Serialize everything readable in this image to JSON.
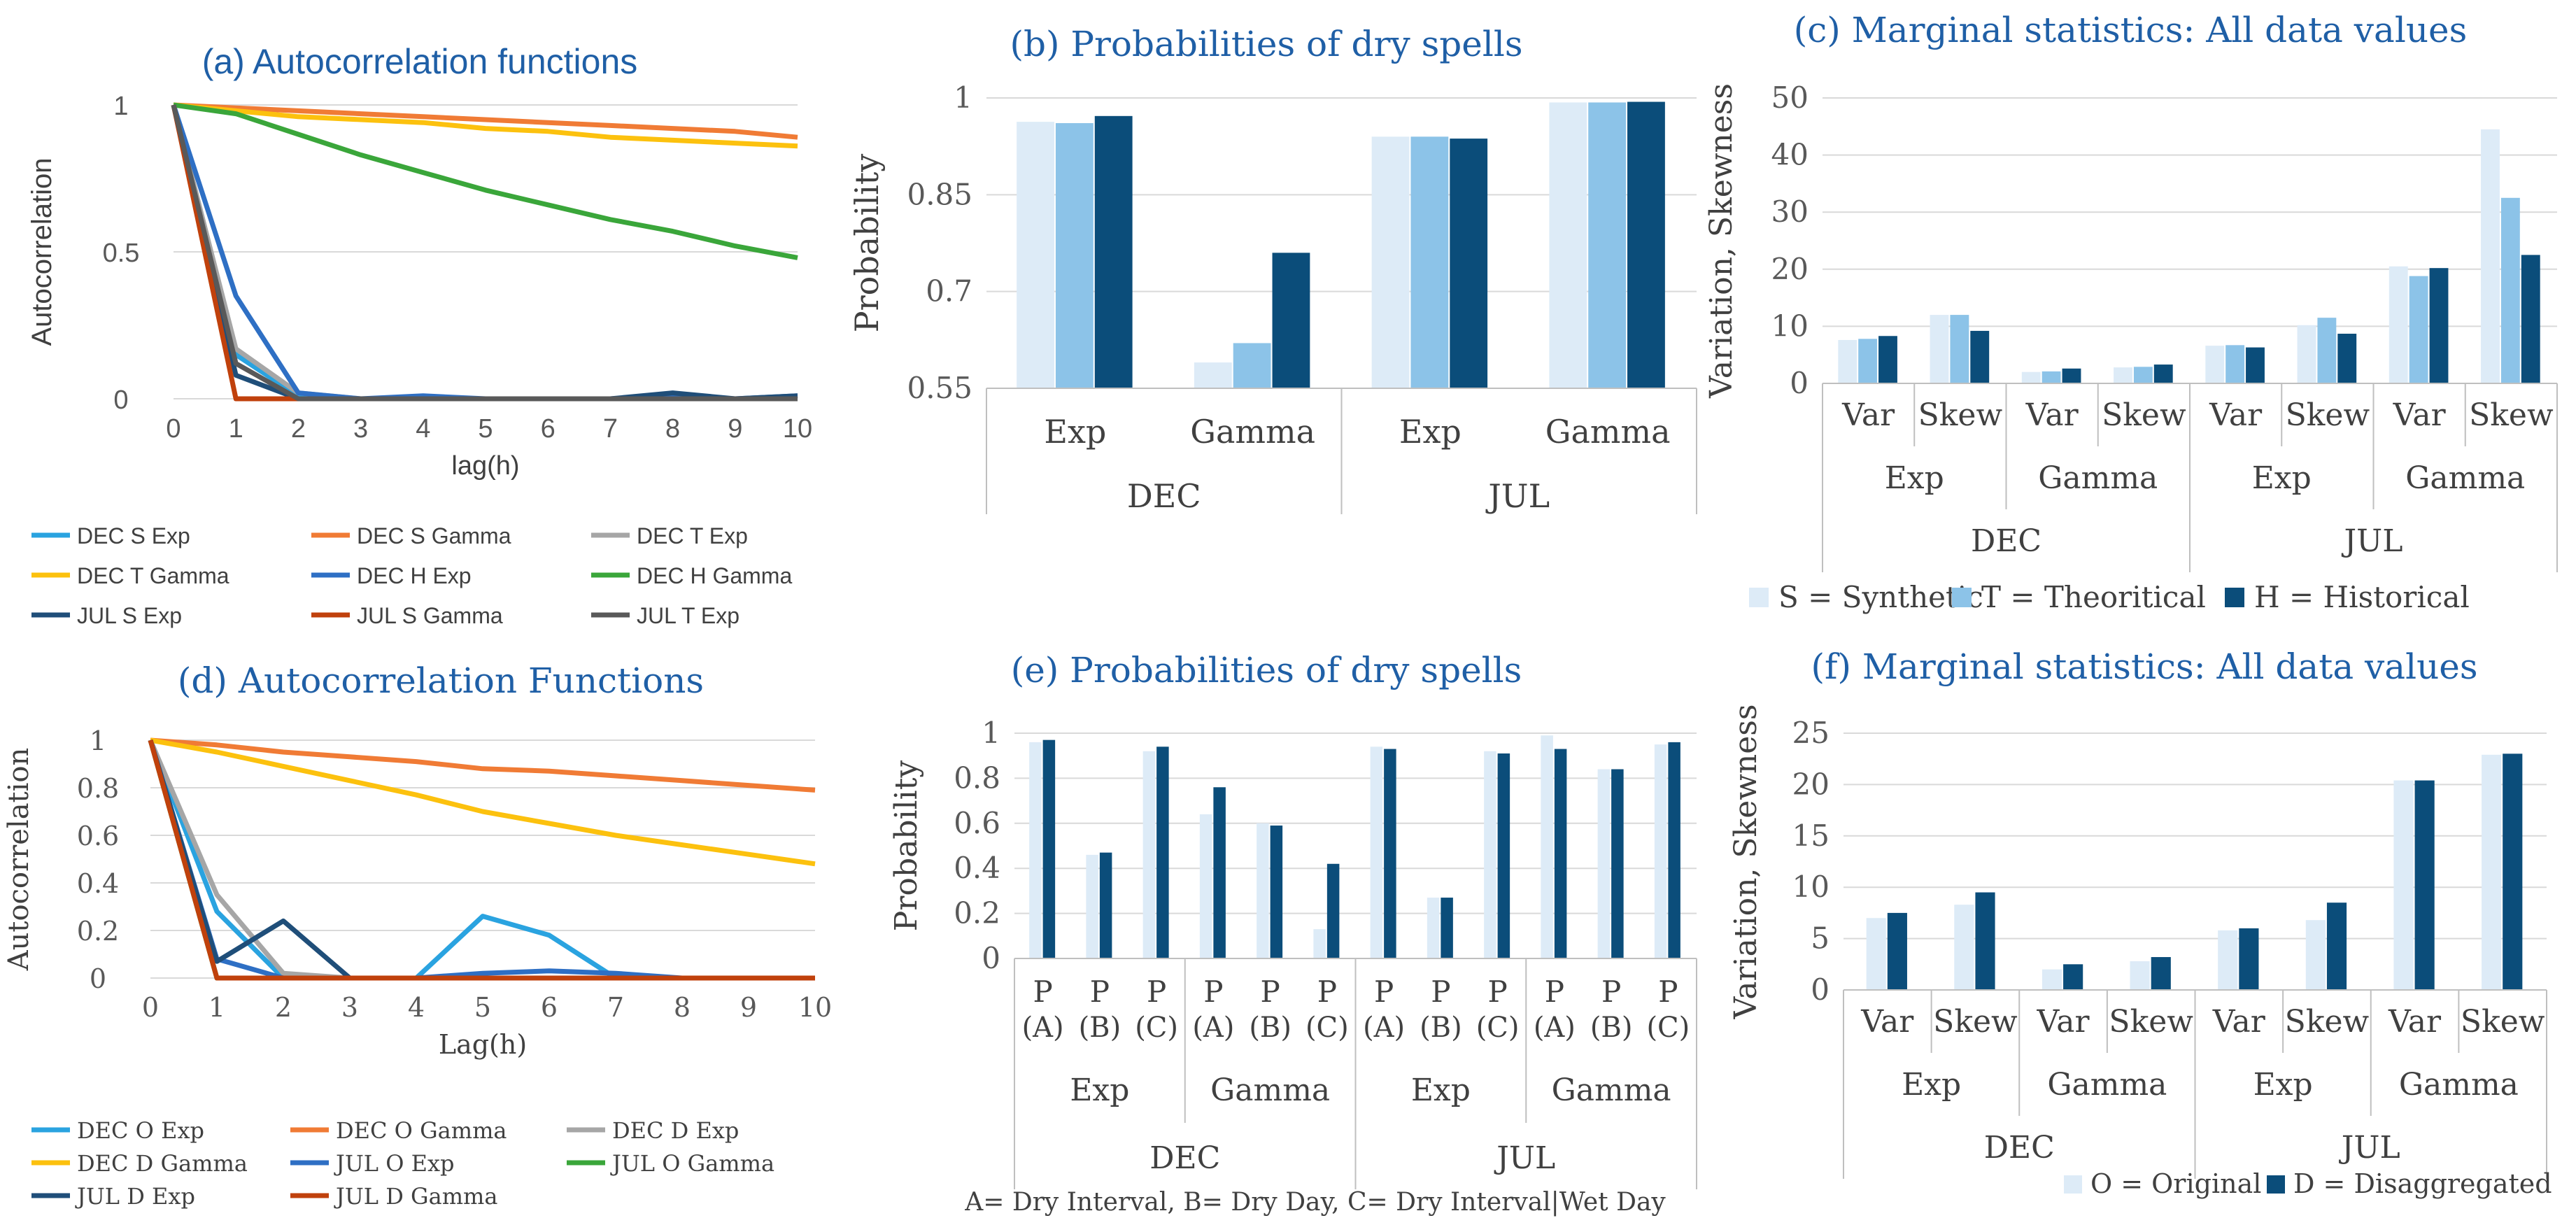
{
  "colors": {
    "dec_s_exp": "#2aa3e0",
    "dec_s_gamma": "#f07b35",
    "dec_t_exp": "#a6a6a6",
    "dec_t_gamma": "#fcc10e",
    "dec_h_exp": "#2e6fc4",
    "dec_h_gamma": "#3aa63a",
    "jul_s_exp": "#1f4e79",
    "jul_s_gamma": "#c0410c",
    "jul_t_exp": "#595959",
    "bar_light": "#ddebf7",
    "bar_mid": "#8cc3e8",
    "bar_dark": "#0b4d7a",
    "title": "#1f5fa6"
  },
  "chart_data": [
    {
      "id": "a",
      "type": "line",
      "title": "(a) Autocorrelation functions",
      "xlabel": "lag(h)",
      "ylabel": "Autocorrelation",
      "x": [
        0,
        1,
        2,
        3,
        4,
        5,
        6,
        7,
        8,
        9,
        10
      ],
      "ylim": [
        0,
        1
      ],
      "yticks": [
        "0",
        "0.5",
        "1"
      ],
      "xticks": [
        "0",
        "1",
        "2",
        "3",
        "4",
        "5",
        "6",
        "7",
        "8",
        "9",
        "10"
      ],
      "series": [
        {
          "name": "DEC S Exp",
          "color_key": "dec_s_exp",
          "values": [
            1,
            0.15,
            0.01,
            0,
            0,
            0,
            0,
            0,
            0,
            0,
            0
          ]
        },
        {
          "name": "DEC S Gamma",
          "color_key": "dec_s_gamma",
          "values": [
            1,
            0.99,
            0.98,
            0.97,
            0.96,
            0.95,
            0.94,
            0.93,
            0.92,
            0.91,
            0.89
          ]
        },
        {
          "name": "DEC T Exp",
          "color_key": "dec_t_exp",
          "values": [
            1,
            0.17,
            0.02,
            0,
            0,
            0,
            0,
            0,
            0,
            0,
            0
          ]
        },
        {
          "name": "DEC T Gamma",
          "color_key": "dec_t_gamma",
          "values": [
            1,
            0.98,
            0.96,
            0.95,
            0.94,
            0.92,
            0.91,
            0.89,
            0.88,
            0.87,
            0.86
          ]
        },
        {
          "name": "DEC H Exp",
          "color_key": "dec_h_exp",
          "values": [
            1,
            0.35,
            0.02,
            0,
            0.01,
            0,
            0,
            0,
            0.01,
            0,
            0.01
          ]
        },
        {
          "name": "DEC H Gamma",
          "color_key": "dec_h_gamma",
          "values": [
            1,
            0.97,
            0.9,
            0.83,
            0.77,
            0.71,
            0.66,
            0.61,
            0.57,
            0.52,
            0.48
          ]
        },
        {
          "name": "JUL S Exp",
          "color_key": "jul_s_exp",
          "values": [
            1,
            0.08,
            0,
            0,
            0,
            0,
            0,
            0,
            0.02,
            0,
            0.01
          ]
        },
        {
          "name": "JUL S Gamma",
          "color_key": "jul_s_gamma",
          "values": [
            1,
            0,
            0,
            0,
            0,
            0,
            0,
            0,
            0,
            0,
            0
          ]
        },
        {
          "name": "JUL T Exp",
          "color_key": "jul_t_exp",
          "values": [
            1,
            0.12,
            0,
            0,
            0,
            0,
            0,
            0,
            0,
            0,
            0
          ]
        }
      ]
    },
    {
      "id": "b",
      "type": "bar",
      "title": "(b) Probabilities of dry spells",
      "ylabel": "Probability",
      "ylim": [
        0.55,
        1.0
      ],
      "yticks": [
        "0.55",
        "0.7",
        "0.85",
        "1"
      ],
      "categories": [
        {
          "label": "Exp",
          "group": "DEC"
        },
        {
          "label": "Gamma",
          "group": "DEC"
        },
        {
          "label": "Exp",
          "group": "JUL"
        },
        {
          "label": "Gamma",
          "group": "JUL"
        }
      ],
      "groups": [
        "DEC",
        "JUL"
      ],
      "series": [
        {
          "name": "Synthetic",
          "color_key": "bar_light",
          "values": [
            0.963,
            0.59,
            0.94,
            0.993
          ]
        },
        {
          "name": "Theoretical",
          "color_key": "bar_mid",
          "values": [
            0.961,
            0.62,
            0.94,
            0.993
          ]
        },
        {
          "name": "Historical",
          "color_key": "bar_dark",
          "values": [
            0.972,
            0.76,
            0.937,
            0.994
          ]
        }
      ]
    },
    {
      "id": "c",
      "type": "bar",
      "title": "(c) Marginal statistics: All data values",
      "ylabel": "Variation, Skewness",
      "ylim": [
        0,
        50
      ],
      "yticks": [
        "0",
        "10",
        "20",
        "30",
        "40",
        "50"
      ],
      "categories": [
        {
          "label": "Var",
          "sub": "Exp",
          "group": "DEC"
        },
        {
          "label": "Skew",
          "sub": "Exp",
          "group": "DEC"
        },
        {
          "label": "Var",
          "sub": "Gamma",
          "group": "DEC"
        },
        {
          "label": "Skew",
          "sub": "Gamma",
          "group": "DEC"
        },
        {
          "label": "Var",
          "sub": "Exp",
          "group": "JUL"
        },
        {
          "label": "Skew",
          "sub": "Exp",
          "group": "JUL"
        },
        {
          "label": "Var",
          "sub": "Gamma",
          "group": "JUL"
        },
        {
          "label": "Skew",
          "sub": "Gamma",
          "group": "JUL"
        }
      ],
      "series": [
        {
          "name": "S = Synthetic",
          "color_key": "bar_light",
          "values": [
            7.6,
            12,
            2,
            2.8,
            6.6,
            10.2,
            20.5,
            44.5
          ]
        },
        {
          "name": "T = Theoritical",
          "color_key": "bar_mid",
          "values": [
            7.8,
            12,
            2.1,
            2.9,
            6.7,
            11.5,
            18.8,
            32.5
          ]
        },
        {
          "name": "H = Historical",
          "color_key": "bar_dark",
          "values": [
            8.3,
            9.2,
            2.6,
            3.3,
            6.3,
            8.7,
            20.2,
            22.5
          ]
        }
      ],
      "legend": [
        "S = Synthetic",
        "T = Theoritical",
        "H = Historical"
      ]
    },
    {
      "id": "d",
      "type": "line",
      "title": "(d) Autocorrelation Functions",
      "xlabel": "Lag(h)",
      "ylabel": "Autocorrelation",
      "x": [
        0,
        1,
        2,
        3,
        4,
        5,
        6,
        7,
        8,
        9,
        10
      ],
      "ylim": [
        0,
        1
      ],
      "yticks": [
        "0",
        "0.2",
        "0.4",
        "0.6",
        "0.8",
        "1"
      ],
      "xticks": [
        "0",
        "1",
        "2",
        "3",
        "4",
        "5",
        "6",
        "7",
        "8",
        "9",
        "10"
      ],
      "series": [
        {
          "name": "DEC O Exp",
          "color_key": "dec_s_exp",
          "values": [
            1,
            0.28,
            0,
            0,
            0,
            0.26,
            0.18,
            0,
            0,
            0,
            0
          ]
        },
        {
          "name": "DEC O Gamma",
          "color_key": "dec_s_gamma",
          "values": [
            1,
            0.98,
            0.95,
            0.93,
            0.91,
            0.88,
            0.87,
            0.85,
            0.83,
            0.81,
            0.79
          ]
        },
        {
          "name": "DEC D Exp",
          "color_key": "dec_t_exp",
          "values": [
            1,
            0.35,
            0.02,
            0,
            0,
            0,
            0,
            0,
            0,
            0,
            0
          ]
        },
        {
          "name": "DEC D Gamma",
          "color_key": "dec_t_gamma",
          "values": [
            1,
            0.95,
            0.89,
            0.83,
            0.77,
            0.7,
            0.65,
            0.6,
            0.56,
            0.52,
            0.48
          ]
        },
        {
          "name": "JUL O Exp",
          "color_key": "dec_h_exp",
          "values": [
            1,
            0.08,
            0,
            0,
            0,
            0.02,
            0.03,
            0.02,
            0,
            0,
            0
          ]
        },
        {
          "name": "JUL O Gamma",
          "color_key": "dec_h_gamma",
          "values": [
            1,
            0,
            0,
            0,
            0,
            0,
            0,
            0,
            0,
            0,
            0
          ]
        },
        {
          "name": "JUL D Exp",
          "color_key": "jul_s_exp",
          "values": [
            1,
            0.07,
            0.24,
            0,
            0,
            0,
            0,
            0,
            0,
            0,
            0
          ]
        },
        {
          "name": "JUL D Gamma",
          "color_key": "jul_s_gamma",
          "values": [
            1,
            0,
            0,
            0,
            0,
            0,
            0,
            0,
            0,
            0,
            0
          ]
        }
      ]
    },
    {
      "id": "e",
      "type": "bar",
      "title": "(e) Probabilities of dry spells",
      "ylabel": "Probability",
      "ylim": [
        0,
        1
      ],
      "yticks": [
        "0",
        "0.2",
        "0.4",
        "0.6",
        "0.8",
        "1"
      ],
      "categories": [
        {
          "p": "P",
          "label": "(A)",
          "sub": "Exp",
          "group": "DEC"
        },
        {
          "p": "P",
          "label": "(B)",
          "sub": "Exp",
          "group": "DEC"
        },
        {
          "p": "P",
          "label": "(C)",
          "sub": "Exp",
          "group": "DEC"
        },
        {
          "p": "P",
          "label": "(A)",
          "sub": "Gamma",
          "group": "DEC"
        },
        {
          "p": "P",
          "label": "(B)",
          "sub": "Gamma",
          "group": "DEC"
        },
        {
          "p": "P",
          "label": "(C)",
          "sub": "Gamma",
          "group": "DEC"
        },
        {
          "p": "P",
          "label": "(A)",
          "sub": "Exp",
          "group": "JUL"
        },
        {
          "p": "P",
          "label": "(B)",
          "sub": "Exp",
          "group": "JUL"
        },
        {
          "p": "P",
          "label": "(C)",
          "sub": "Exp",
          "group": "JUL"
        },
        {
          "p": "P",
          "label": "(A)",
          "sub": "Gamma",
          "group": "JUL"
        },
        {
          "p": "P",
          "label": "(B)",
          "sub": "Gamma",
          "group": "JUL"
        },
        {
          "p": "P",
          "label": "(C)",
          "sub": "Gamma",
          "group": "JUL"
        }
      ],
      "series": [
        {
          "name": "Original",
          "color_key": "bar_light",
          "values": [
            0.96,
            0.46,
            0.92,
            0.64,
            0.6,
            0.13,
            0.94,
            0.27,
            0.92,
            0.99,
            0.84,
            0.95
          ]
        },
        {
          "name": "Disaggregated",
          "color_key": "bar_dark",
          "values": [
            0.97,
            0.47,
            0.94,
            0.76,
            0.59,
            0.42,
            0.93,
            0.27,
            0.91,
            0.93,
            0.84,
            0.96
          ]
        }
      ],
      "footnote": "A= Dry Interval, B= Dry Day, C= Dry Interval|Wet Day"
    },
    {
      "id": "f",
      "type": "bar",
      "title": "(f) Marginal statistics: All data values",
      "ylabel": "Variation, Skewness",
      "ylim": [
        0,
        25
      ],
      "yticks": [
        "0",
        "5",
        "10",
        "15",
        "20",
        "25"
      ],
      "categories": [
        {
          "label": "Var",
          "sub": "Exp",
          "group": "DEC"
        },
        {
          "label": "Skew",
          "sub": "Exp",
          "group": "DEC"
        },
        {
          "label": "Var",
          "sub": "Gamma",
          "group": "DEC"
        },
        {
          "label": "Skew",
          "sub": "Gamma",
          "group": "DEC"
        },
        {
          "label": "Var",
          "sub": "Exp",
          "group": "JUL"
        },
        {
          "label": "Skew",
          "sub": "Exp",
          "group": "JUL"
        },
        {
          "label": "Var",
          "sub": "Gamma",
          "group": "JUL"
        },
        {
          "label": "Skew",
          "sub": "Gamma",
          "group": "JUL"
        }
      ],
      "series": [
        {
          "name": "O = Original",
          "color_key": "bar_light",
          "values": [
            7,
            8.3,
            2,
            2.8,
            5.8,
            6.8,
            20.4,
            22.9
          ]
        },
        {
          "name": "D = Disaggregated",
          "color_key": "bar_dark",
          "values": [
            7.5,
            9.5,
            2.5,
            3.2,
            6.0,
            8.5,
            20.4,
            23.0
          ]
        }
      ],
      "legend": [
        "O = Original",
        "D = Disaggregated"
      ]
    }
  ]
}
